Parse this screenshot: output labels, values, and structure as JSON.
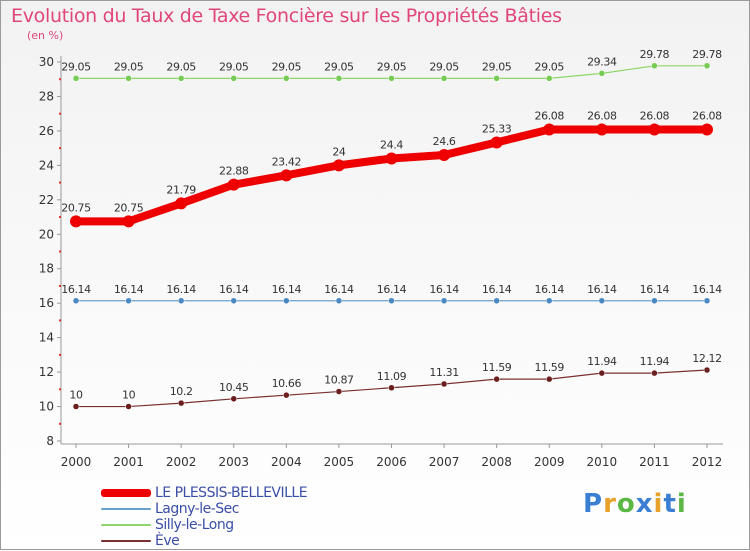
{
  "title": "Evolution du Taux de Taxe Foncière sur les Propriétés Bâties",
  "subtitle": "(en %)",
  "logo": {
    "text": "Proxiti",
    "letter_colors": [
      "#3a7fd1",
      "#e8a22c",
      "#5bb845",
      "#3a7fd1",
      "#e8a22c",
      "#3a7fd1",
      "#5bb845"
    ]
  },
  "chart_data": {
    "type": "line",
    "title": "Evolution du Taux de Taxe Foncière sur les Propriétés Bâties",
    "ylabel": "(en %)",
    "xlabel": "",
    "ylim": [
      8,
      30
    ],
    "yticks": [
      8,
      10,
      12,
      14,
      16,
      18,
      20,
      22,
      24,
      26,
      28,
      30
    ],
    "grid": false,
    "x": [
      "2000",
      "2001",
      "2002",
      "2003",
      "2004",
      "2005",
      "2006",
      "2007",
      "2008",
      "2009",
      "2010",
      "2011",
      "2012"
    ],
    "series": [
      {
        "name": "LE PLESSIS-BELLEVILLE",
        "color": "#ee0000",
        "labels": [
          "20.75",
          "20.75",
          "21.79",
          "22.88",
          "23.42",
          "24",
          "24.4",
          "24.6",
          "25.33",
          "26.08",
          "26.08",
          "26.08",
          "26.08"
        ],
        "values": [
          20.75,
          20.75,
          21.79,
          22.88,
          23.42,
          24,
          24.4,
          24.6,
          25.33,
          26.08,
          26.08,
          26.08,
          26.08
        ]
      },
      {
        "name": "Lagny-le-Sec",
        "color": "#6aa0cc",
        "labels": [
          "16.14",
          "16.14",
          "16.14",
          "16.14",
          "16.14",
          "16.14",
          "16.14",
          "16.14",
          "16.14",
          "16.14",
          "16.14",
          "16.14",
          "16.14"
        ],
        "values": [
          16.14,
          16.14,
          16.14,
          16.14,
          16.14,
          16.14,
          16.14,
          16.14,
          16.14,
          16.14,
          16.14,
          16.14,
          16.14
        ]
      },
      {
        "name": "Silly-le-Long",
        "color": "#8fd66a",
        "labels": [
          "29.05",
          "29.05",
          "29.05",
          "29.05",
          "29.05",
          "29.05",
          "29.05",
          "29.05",
          "29.05",
          "29.05",
          "29.34",
          "29.78",
          "29.78"
        ],
        "values": [
          29.05,
          29.05,
          29.05,
          29.05,
          29.05,
          29.05,
          29.05,
          29.05,
          29.05,
          29.05,
          29.34,
          29.78,
          29.78
        ]
      },
      {
        "name": "Ève",
        "color": "#7a3030",
        "labels": [
          "10",
          "10",
          "10.2",
          "10.45",
          "10.66",
          "10.87",
          "11.09",
          "11.31",
          "11.59",
          "11.59",
          "11.94",
          "11.94",
          "12.12"
        ],
        "values": [
          10,
          10,
          10.2,
          10.45,
          10.66,
          10.87,
          11.09,
          11.31,
          11.59,
          11.59,
          11.94,
          11.94,
          12.12
        ]
      }
    ]
  }
}
